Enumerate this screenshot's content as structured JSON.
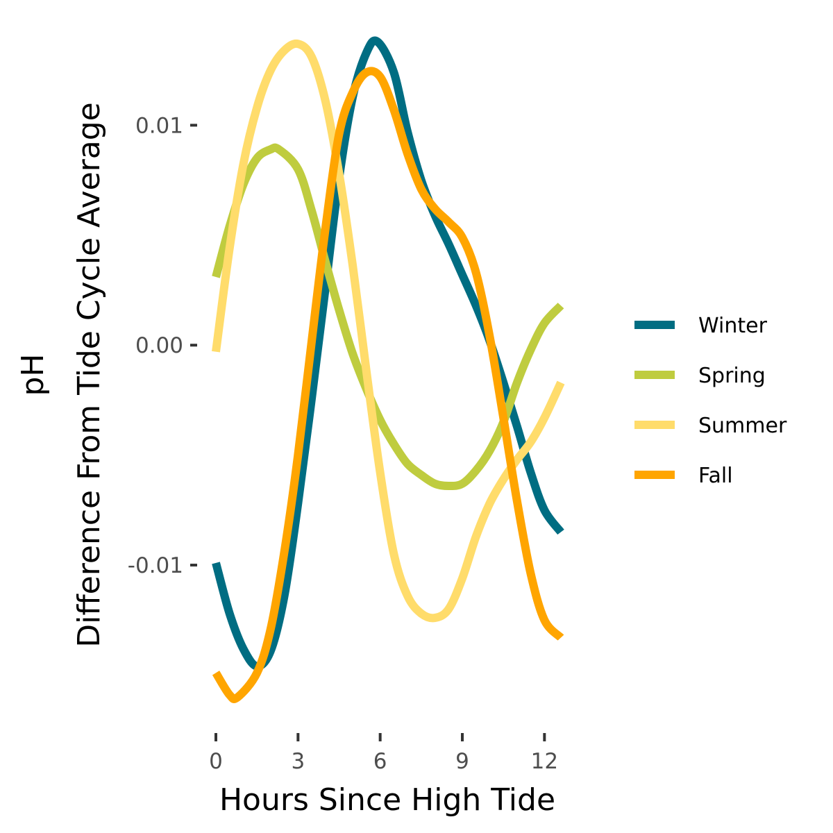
{
  "chart_data": {
    "type": "line",
    "title": "",
    "xlabel": "Hours Since High Tide",
    "ylabel_lines": [
      "pH",
      "Difference From Tide Cycle Average"
    ],
    "xlim": [
      0,
      12.6
    ],
    "ylim": [
      -0.0165,
      0.0138
    ],
    "x_ticks": [
      {
        "value": 0,
        "label": "0"
      },
      {
        "value": 3,
        "label": "3"
      },
      {
        "value": 6,
        "label": "6"
      },
      {
        "value": 9,
        "label": "9"
      },
      {
        "value": 12,
        "label": "12"
      }
    ],
    "y_ticks": [
      {
        "value": 0.01,
        "label": "0.01"
      },
      {
        "value": 0.0,
        "label": "0.00"
      },
      {
        "value": -0.01,
        "label": "-0.01"
      }
    ],
    "grid": false,
    "legend_position": "right",
    "series": [
      {
        "name": "Winter",
        "color": "#006d82",
        "points": [
          [
            0,
            -0.0099
          ],
          [
            0.5,
            -0.0122
          ],
          [
            1,
            -0.0138
          ],
          [
            1.5,
            -0.0146
          ],
          [
            2,
            -0.0139
          ],
          [
            2.5,
            -0.0114
          ],
          [
            3,
            -0.0072
          ],
          [
            3.5,
            -0.0024
          ],
          [
            4,
            0.0026
          ],
          [
            4.5,
            0.0076
          ],
          [
            5,
            0.0113
          ],
          [
            5.5,
            0.0133
          ],
          [
            5.9,
            0.0138
          ],
          [
            6.5,
            0.0124
          ],
          [
            7,
            0.0097
          ],
          [
            7.5,
            0.0075
          ],
          [
            8,
            0.0059
          ],
          [
            8.5,
            0.0046
          ],
          [
            9,
            0.0032
          ],
          [
            9.5,
            0.0018
          ],
          [
            10,
            0.0002
          ],
          [
            10.5,
            -0.0017
          ],
          [
            11,
            -0.0037
          ],
          [
            11.5,
            -0.0058
          ],
          [
            12,
            -0.0075
          ],
          [
            12.6,
            -0.0085
          ]
        ]
      },
      {
        "name": "Spring",
        "color": "#bfcc3f",
        "points": [
          [
            0,
            0.0031
          ],
          [
            0.5,
            0.0054
          ],
          [
            1,
            0.0073
          ],
          [
            1.5,
            0.0085
          ],
          [
            2,
            0.0089
          ],
          [
            2.3,
            0.0089
          ],
          [
            3,
            0.008
          ],
          [
            3.5,
            0.0061
          ],
          [
            4,
            0.0038
          ],
          [
            4.5,
            0.0016
          ],
          [
            5,
            -0.0004
          ],
          [
            5.5,
            -0.002
          ],
          [
            6,
            -0.0034
          ],
          [
            6.5,
            -0.0045
          ],
          [
            7,
            -0.0054
          ],
          [
            7.5,
            -0.0059
          ],
          [
            8,
            -0.0063
          ],
          [
            8.5,
            -0.0064
          ],
          [
            9,
            -0.0063
          ],
          [
            9.5,
            -0.0057
          ],
          [
            10,
            -0.0048
          ],
          [
            10.5,
            -0.0035
          ],
          [
            11,
            -0.0017
          ],
          [
            11.5,
            -0.0002
          ],
          [
            12,
            0.001
          ],
          [
            12.6,
            0.0018
          ]
        ]
      },
      {
        "name": "Summer",
        "color": "#ffdc6b",
        "points": [
          [
            0,
            -0.0003
          ],
          [
            0.5,
            0.0044
          ],
          [
            1,
            0.0082
          ],
          [
            1.5,
            0.0108
          ],
          [
            2,
            0.0125
          ],
          [
            2.5,
            0.0134
          ],
          [
            3,
            0.0137
          ],
          [
            3.5,
            0.0131
          ],
          [
            4,
            0.0111
          ],
          [
            4.5,
            0.0078
          ],
          [
            5,
            0.0036
          ],
          [
            5.5,
            -0.0012
          ],
          [
            6,
            -0.0058
          ],
          [
            6.5,
            -0.0095
          ],
          [
            7,
            -0.0114
          ],
          [
            7.5,
            -0.0122
          ],
          [
            8,
            -0.0124
          ],
          [
            8.5,
            -0.012
          ],
          [
            9,
            -0.0106
          ],
          [
            9.5,
            -0.0087
          ],
          [
            10,
            -0.0072
          ],
          [
            10.5,
            -0.0061
          ],
          [
            11,
            -0.0052
          ],
          [
            11.5,
            -0.0044
          ],
          [
            12,
            -0.0033
          ],
          [
            12.6,
            -0.0017
          ]
        ]
      },
      {
        "name": "Fall",
        "color": "#ffa500",
        "points": [
          [
            0,
            -0.0149
          ],
          [
            0.5,
            -0.0159
          ],
          [
            0.8,
            -0.016
          ],
          [
            1.5,
            -0.0149
          ],
          [
            2,
            -0.0129
          ],
          [
            2.5,
            -0.0094
          ],
          [
            3,
            -0.005
          ],
          [
            3.5,
            0.0002
          ],
          [
            4,
            0.0053
          ],
          [
            4.5,
            0.0096
          ],
          [
            5,
            0.0115
          ],
          [
            5.5,
            0.0124
          ],
          [
            6,
            0.0122
          ],
          [
            6.5,
            0.0107
          ],
          [
            7,
            0.0087
          ],
          [
            7.5,
            0.0071
          ],
          [
            8,
            0.0062
          ],
          [
            8.5,
            0.0056
          ],
          [
            9,
            0.0049
          ],
          [
            9.5,
            0.0033
          ],
          [
            10,
            0.0004
          ],
          [
            10.5,
            -0.0033
          ],
          [
            11,
            -0.0071
          ],
          [
            11.5,
            -0.0104
          ],
          [
            12,
            -0.0125
          ],
          [
            12.6,
            -0.0133
          ]
        ]
      }
    ]
  }
}
